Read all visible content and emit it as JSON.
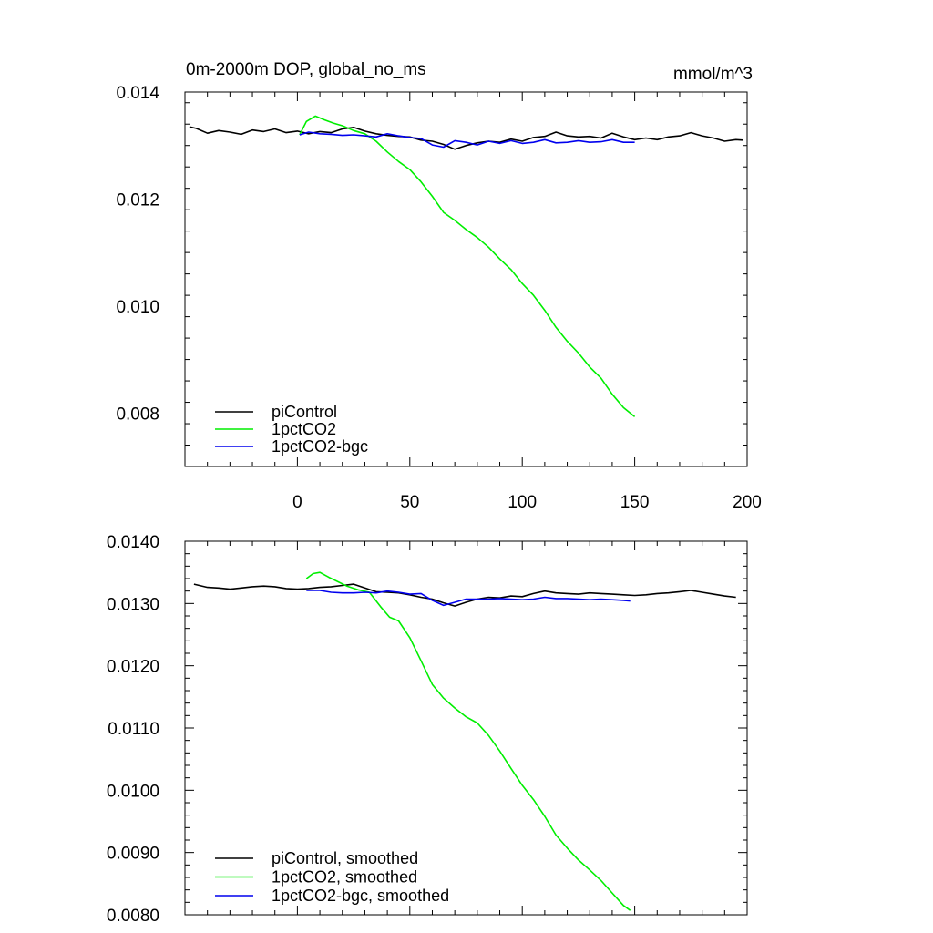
{
  "chart_data": [
    {
      "type": "line",
      "title": "0m-2000m DOP, global_no_ms",
      "units": "mmol/m^3",
      "xlim": [
        -50,
        200
      ],
      "ylim": [
        0.007,
        0.014
      ],
      "x_ticks": [
        0,
        50,
        100,
        150,
        200
      ],
      "x_tick_labels": [
        "0",
        "50",
        "100",
        "150",
        "200"
      ],
      "y_ticks": [
        0.008,
        0.01,
        0.012,
        0.014
      ],
      "y_tick_labels": [
        "0.008",
        "0.010",
        "0.012",
        "0.014"
      ],
      "legend_position": "bottom-left",
      "series": [
        {
          "name": "piControl",
          "color": "#000000",
          "x": [
            -48,
            -45,
            -40,
            -35,
            -30,
            -25,
            -20,
            -15,
            -10,
            -5,
            0,
            5,
            10,
            15,
            20,
            25,
            30,
            35,
            40,
            45,
            50,
            55,
            60,
            65,
            70,
            75,
            80,
            85,
            90,
            95,
            100,
            105,
            110,
            115,
            120,
            125,
            130,
            135,
            140,
            145,
            150,
            155,
            160,
            165,
            170,
            175,
            180,
            185,
            190,
            195,
            198
          ],
          "y": [
            0.01335,
            0.01332,
            0.01323,
            0.01328,
            0.01325,
            0.01321,
            0.01329,
            0.01326,
            0.01331,
            0.01324,
            0.01327,
            0.01322,
            0.01326,
            0.01324,
            0.01331,
            0.01334,
            0.01327,
            0.01322,
            0.01319,
            0.01317,
            0.01316,
            0.0131,
            0.01308,
            0.01302,
            0.01293,
            0.013,
            0.01305,
            0.01308,
            0.01306,
            0.01312,
            0.01308,
            0.01315,
            0.01317,
            0.01325,
            0.01318,
            0.01316,
            0.01317,
            0.01314,
            0.01323,
            0.01316,
            0.01311,
            0.01314,
            0.01311,
            0.01316,
            0.01318,
            0.01324,
            0.01318,
            0.01314,
            0.01308,
            0.01311,
            0.0131
          ]
        },
        {
          "name": "1pctCO2",
          "color": "#00ee00",
          "x": [
            1,
            4,
            8,
            12,
            16,
            20,
            25,
            30,
            35,
            40,
            45,
            50,
            55,
            60,
            65,
            70,
            75,
            80,
            85,
            90,
            95,
            100,
            105,
            110,
            115,
            120,
            125,
            130,
            135,
            140,
            145,
            150
          ],
          "y": [
            0.0132,
            0.01345,
            0.01355,
            0.01348,
            0.01342,
            0.01337,
            0.01328,
            0.01322,
            0.01308,
            0.01288,
            0.0127,
            0.01255,
            0.01232,
            0.01205,
            0.01175,
            0.0116,
            0.01143,
            0.01128,
            0.0111,
            0.01088,
            0.01068,
            0.01042,
            0.0102,
            0.00992,
            0.0096,
            0.00934,
            0.00912,
            0.00886,
            0.00865,
            0.00835,
            0.0081,
            0.00793
          ]
        },
        {
          "name": "1pctCO2-bgc",
          "color": "#0000ee",
          "x": [
            1,
            5,
            10,
            15,
            20,
            25,
            30,
            35,
            40,
            45,
            50,
            55,
            60,
            65,
            70,
            75,
            80,
            85,
            90,
            95,
            100,
            105,
            110,
            115,
            120,
            125,
            130,
            135,
            140,
            145,
            150
          ],
          "y": [
            0.0132,
            0.01325,
            0.01322,
            0.01321,
            0.01319,
            0.0132,
            0.01318,
            0.01316,
            0.01322,
            0.01318,
            0.01315,
            0.01313,
            0.01301,
            0.01297,
            0.01309,
            0.01306,
            0.01301,
            0.01308,
            0.01304,
            0.01309,
            0.01304,
            0.01306,
            0.01311,
            0.01305,
            0.01306,
            0.01309,
            0.01306,
            0.01307,
            0.01311,
            0.01306,
            0.01306
          ]
        }
      ]
    },
    {
      "type": "line",
      "xlim": [
        -50,
        200
      ],
      "ylim": [
        0.008,
        0.014
      ],
      "x_ticks": [
        0,
        50,
        100,
        150,
        200
      ],
      "y_ticks": [
        0.008,
        0.009,
        0.01,
        0.011,
        0.012,
        0.013,
        0.014
      ],
      "y_tick_labels": [
        "0.0080",
        "0.0090",
        "0.0100",
        "0.0110",
        "0.0120",
        "0.0130",
        "0.0140"
      ],
      "legend_position": "bottom-left",
      "series": [
        {
          "name": "piControl, smoothed",
          "color": "#000000",
          "x": [
            -46,
            -40,
            -35,
            -30,
            -25,
            -20,
            -15,
            -10,
            -5,
            0,
            5,
            10,
            15,
            20,
            25,
            30,
            35,
            40,
            45,
            50,
            55,
            60,
            65,
            70,
            75,
            80,
            85,
            90,
            95,
            100,
            105,
            110,
            115,
            120,
            125,
            130,
            135,
            140,
            145,
            150,
            155,
            160,
            165,
            170,
            175,
            180,
            185,
            190,
            195
          ],
          "y": [
            0.01331,
            0.01326,
            0.01325,
            0.01323,
            0.01325,
            0.01327,
            0.01328,
            0.01327,
            0.01324,
            0.01323,
            0.01324,
            0.01326,
            0.01327,
            0.01329,
            0.01331,
            0.01325,
            0.01319,
            0.01318,
            0.01317,
            0.01314,
            0.0131,
            0.01307,
            0.01301,
            0.01296,
            0.01302,
            0.01307,
            0.0131,
            0.01309,
            0.01312,
            0.01311,
            0.01316,
            0.0132,
            0.01317,
            0.01316,
            0.01315,
            0.01317,
            0.01316,
            0.01315,
            0.01314,
            0.01313,
            0.01314,
            0.01316,
            0.01317,
            0.01319,
            0.01321,
            0.01318,
            0.01315,
            0.01312,
            0.0131
          ]
        },
        {
          "name": "1pctCO2, smoothed",
          "color": "#00ee00",
          "x": [
            4,
            7,
            10,
            14,
            18,
            22,
            27,
            32,
            37,
            41,
            45,
            50,
            55,
            60,
            65,
            70,
            75,
            80,
            85,
            90,
            95,
            100,
            105,
            110,
            115,
            120,
            125,
            130,
            135,
            140,
            145,
            148
          ],
          "y": [
            0.0134,
            0.01348,
            0.0135,
            0.01342,
            0.01335,
            0.01328,
            0.01322,
            0.01318,
            0.01295,
            0.01278,
            0.01272,
            0.01245,
            0.01208,
            0.0117,
            0.01148,
            0.01132,
            0.01118,
            0.01108,
            0.01088,
            0.01063,
            0.01035,
            0.01008,
            0.00985,
            0.00958,
            0.00928,
            0.00907,
            0.00888,
            0.00872,
            0.00855,
            0.00835,
            0.00815,
            0.00807
          ]
        },
        {
          "name": "1pctCO2-bgc, smoothed",
          "color": "#0000ee",
          "x": [
            4,
            10,
            15,
            20,
            25,
            30,
            35,
            40,
            45,
            50,
            55,
            60,
            65,
            70,
            75,
            80,
            85,
            90,
            95,
            100,
            105,
            110,
            115,
            120,
            125,
            130,
            135,
            140,
            145,
            148
          ],
          "y": [
            0.01321,
            0.01321,
            0.01318,
            0.01317,
            0.01317,
            0.01318,
            0.01317,
            0.0132,
            0.01318,
            0.01315,
            0.01316,
            0.01305,
            0.01297,
            0.01302,
            0.01307,
            0.01307,
            0.01307,
            0.01308,
            0.01307,
            0.01306,
            0.01307,
            0.0131,
            0.01308,
            0.01308,
            0.01307,
            0.01306,
            0.01307,
            0.01306,
            0.01305,
            0.01304
          ]
        }
      ]
    }
  ]
}
